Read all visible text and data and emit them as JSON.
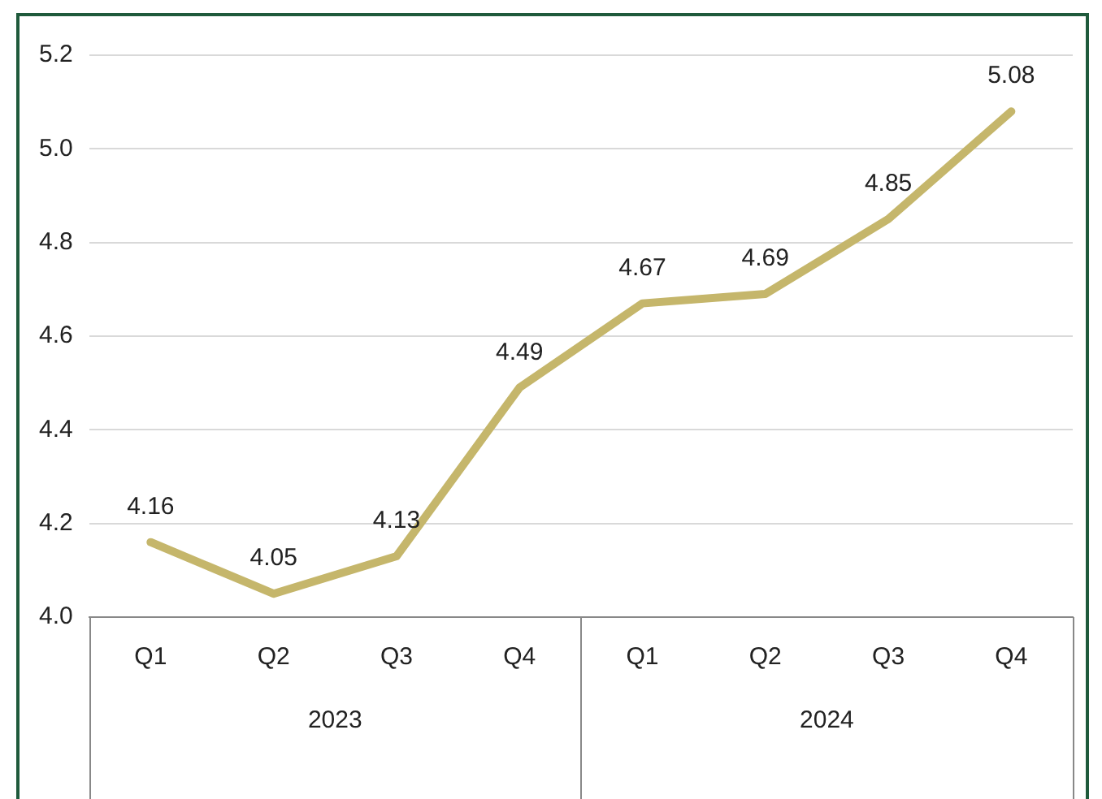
{
  "chart_data": {
    "type": "line",
    "categories": [
      "Q1",
      "Q2",
      "Q3",
      "Q4",
      "Q1",
      "Q2",
      "Q3",
      "Q4"
    ],
    "values": [
      4.16,
      4.05,
      4.13,
      4.49,
      4.67,
      4.69,
      4.85,
      5.08
    ],
    "color": "#c5b66b",
    "ylim": [
      4.0,
      5.2
    ],
    "yticks": [
      {
        "value": 4.0,
        "label": "4.0"
      },
      {
        "value": 4.2,
        "label": "4.2"
      },
      {
        "value": 4.4,
        "label": "4.4"
      },
      {
        "value": 4.6,
        "label": "4.6"
      },
      {
        "value": 4.8,
        "label": "4.8"
      },
      {
        "value": 5.0,
        "label": "5.0"
      },
      {
        "value": 5.2,
        "label": "5.2"
      }
    ],
    "grid": "y",
    "data_labels": true,
    "marker": "none",
    "line_style": "solid",
    "legend": false,
    "annotations": [
      "2023",
      "2024"
    ]
  }
}
